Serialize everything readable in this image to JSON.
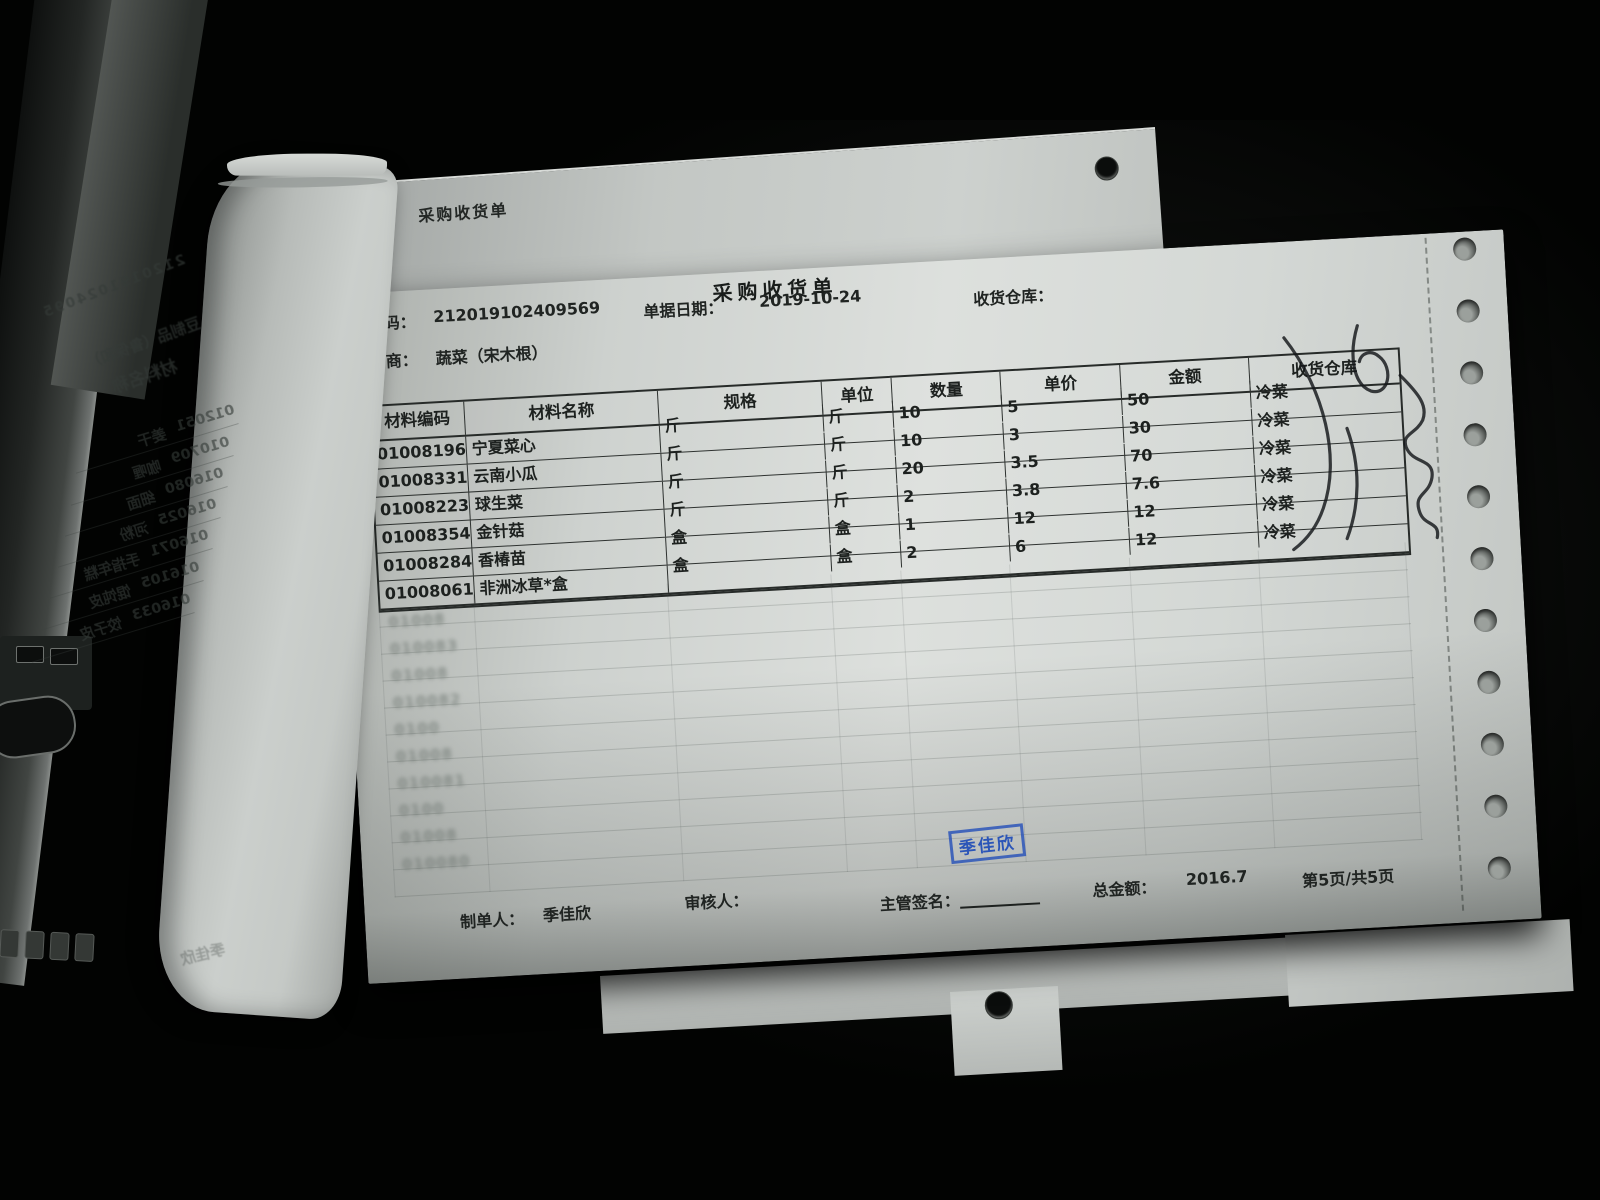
{
  "document": {
    "back_sheet_title": "采购收货单",
    "sheet": {
      "title": "采购收货单",
      "fields": {
        "doc_no_label": "码：",
        "doc_no": "212019102409569",
        "date_label": "单据日期：",
        "date": "2019-10-24",
        "warehouse_label": "收货仓库：",
        "supplier_label": "商：",
        "supplier": "蔬菜（宋木根）"
      },
      "table": {
        "headers": [
          "材料编码",
          "材料名称",
          "规格",
          "单位",
          "数量",
          "单价",
          "金额",
          "收货仓库"
        ],
        "rows": [
          {
            "code": "01008196",
            "name": "宁夏菜心",
            "spec": "斤",
            "unit": "斤",
            "qty": "10",
            "price": "5",
            "amount": "50",
            "wh": "冷菜"
          },
          {
            "code": "01008331",
            "name": "云南小瓜",
            "spec": "斤",
            "unit": "斤",
            "qty": "10",
            "price": "3",
            "amount": "30",
            "wh": "冷菜"
          },
          {
            "code": "01008223",
            "name": "球生菜",
            "spec": "斤",
            "unit": "斤",
            "qty": "20",
            "price": "3.5",
            "amount": "70",
            "wh": "冷菜"
          },
          {
            "code": "01008354",
            "name": "金针菇",
            "spec": "斤",
            "unit": "斤",
            "qty": "2",
            "price": "3.8",
            "amount": "7.6",
            "wh": "冷菜"
          },
          {
            "code": "01008284",
            "name": "香椿苗",
            "spec": "盒",
            "unit": "盒",
            "qty": "1",
            "price": "12",
            "amount": "12",
            "wh": "冷菜"
          },
          {
            "code": "01008061",
            "name": "非洲冰草*盒",
            "spec": "盒",
            "unit": "盒",
            "qty": "2",
            "price": "6",
            "amount": "12",
            "wh": "冷菜"
          }
        ]
      },
      "stamp": {
        "text": "季佳欣",
        "color": "#2b55b8"
      },
      "footer": {
        "preparer_label": "制单人：",
        "preparer": "季佳欣",
        "reviewer_label": "审核人：",
        "supervisor_label": "主管签名：",
        "total_label": "总金额：",
        "total": "2016.7",
        "page_info": "第5页/共5页"
      }
    },
    "fold": {
      "serial": "2120191024095",
      "supplier": "豆制品（鲁保和）",
      "table_header": "材料名称",
      "rows": [
        {
          "code": "012051",
          "name": "姜干"
        },
        {
          "code": "010709",
          "name": "咖喱"
        },
        {
          "code": "016080",
          "name": "细面"
        },
        {
          "code": "016025",
          "name": "河粉"
        },
        {
          "code": "016071",
          "name": "手指年糕"
        },
        {
          "code": "016105",
          "name": "馄饨皮"
        },
        {
          "code": "016033",
          "name": "饺子皮"
        }
      ],
      "signature": "季佳欣"
    },
    "ghost_codes": [
      "01008",
      "010083",
      "01008",
      "010082",
      "0100",
      "01008",
      "010081",
      "0100",
      "01008",
      "010080"
    ]
  }
}
